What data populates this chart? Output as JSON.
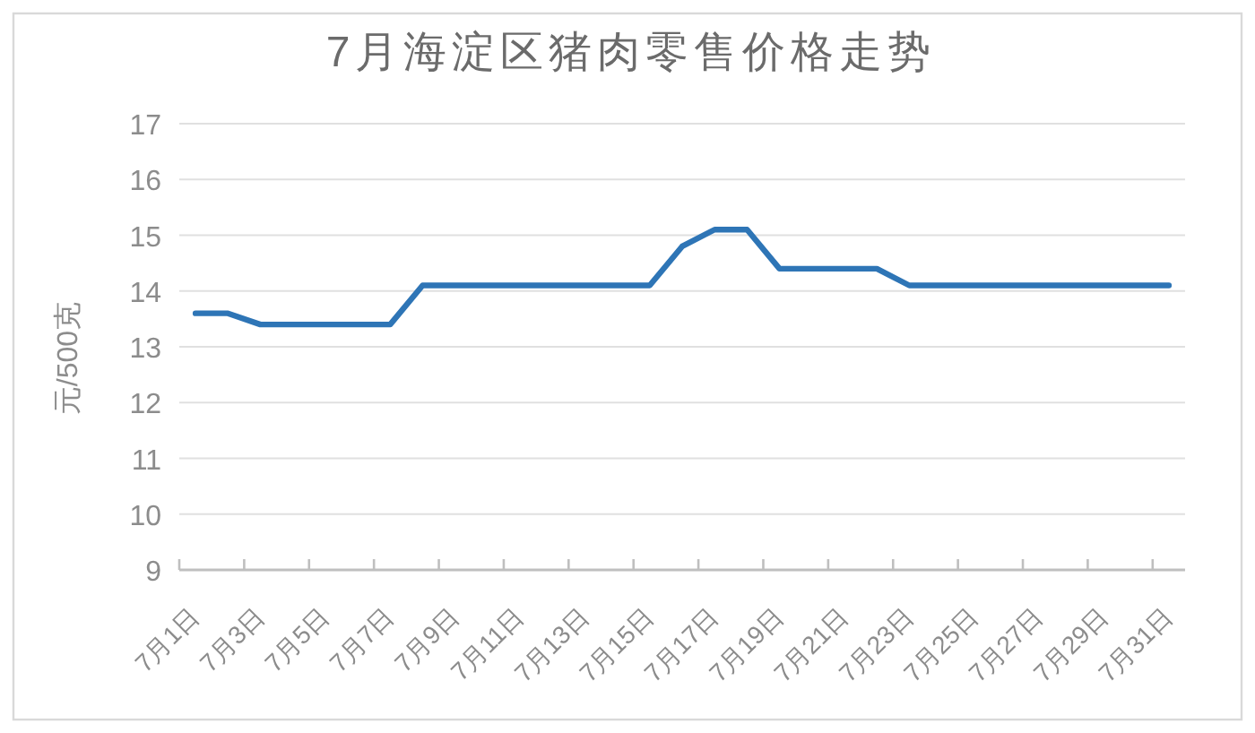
{
  "chart_data": {
    "type": "line",
    "title": "7月海淀区猪肉零售价格走势",
    "ylabel": "元/500克",
    "categories": [
      "7月1日",
      null,
      "7月3日",
      null,
      "7月5日",
      null,
      "7月7日",
      null,
      "7月9日",
      null,
      "7月11日",
      null,
      "7月13日",
      null,
      "7月15日",
      null,
      "7月17日",
      null,
      "7月19日",
      null,
      "7月21日",
      null,
      "7月23日",
      null,
      "7月25日",
      null,
      "7月27日",
      null,
      "7月29日",
      null,
      "7月31日"
    ],
    "values": [
      13.6,
      13.6,
      13.4,
      13.4,
      13.4,
      13.4,
      13.4,
      14.1,
      14.1,
      14.1,
      14.1,
      14.1,
      14.1,
      14.1,
      14.1,
      14.8,
      15.1,
      15.1,
      14.4,
      14.4,
      14.4,
      14.4,
      14.1,
      14.1,
      14.1,
      14.1,
      14.1,
      14.1,
      14.1,
      14.1,
      14.1
    ],
    "color": "#2e75b6",
    "ylim": [
      9,
      17
    ],
    "yticks": [
      9,
      10,
      11,
      12,
      13,
      14,
      15,
      16,
      17
    ],
    "grid": "y"
  }
}
